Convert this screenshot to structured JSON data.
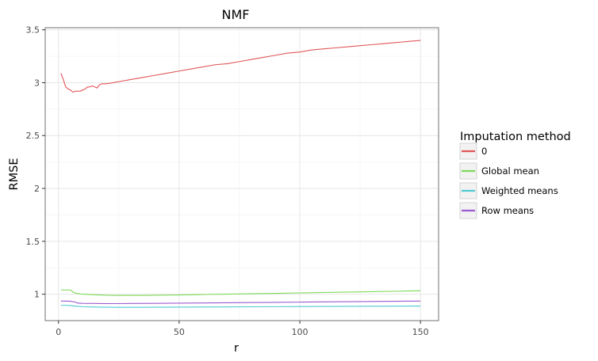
{
  "chart_data": {
    "type": "line",
    "title": "NMF",
    "xlabel": "r",
    "ylabel": "RMSE",
    "xlim": [
      -5.5,
      157.5
    ],
    "ylim": [
      0.75,
      3.52
    ],
    "xticks": [
      0,
      50,
      100,
      150
    ],
    "xtick_labels": [
      "0",
      "50",
      "100",
      "150"
    ],
    "yticks": [
      1,
      1.5,
      2,
      2.5,
      3,
      3.5
    ],
    "ytick_labels": [
      "1",
      "1.5",
      "2",
      "2.5",
      "3",
      "3.5"
    ],
    "grid": true,
    "legend": {
      "title": "Imputation method",
      "position": "right"
    },
    "series": [
      {
        "name": "0",
        "color": "#e15759",
        "x": [
          1,
          2,
          3,
          4,
          5,
          6,
          7,
          8,
          9,
          10,
          11,
          12,
          13,
          14,
          15,
          16,
          17,
          18,
          19,
          20,
          25,
          30,
          35,
          40,
          45,
          50,
          55,
          60,
          65,
          70,
          75,
          80,
          85,
          90,
          95,
          100,
          105,
          110,
          115,
          120,
          125,
          130,
          135,
          140,
          145,
          150
        ],
        "y": [
          3.09,
          3.03,
          2.96,
          2.94,
          2.93,
          2.91,
          2.92,
          2.92,
          2.92,
          2.93,
          2.94,
          2.96,
          2.96,
          2.97,
          2.96,
          2.95,
          2.98,
          2.99,
          2.99,
          2.99,
          3.01,
          3.03,
          3.05,
          3.07,
          3.09,
          3.11,
          3.13,
          3.15,
          3.17,
          3.18,
          3.2,
          3.22,
          3.24,
          3.26,
          3.28,
          3.29,
          3.31,
          3.32,
          3.33,
          3.34,
          3.35,
          3.36,
          3.37,
          3.38,
          3.39,
          3.4
        ]
      },
      {
        "name": "Global mean",
        "color": "#7ed957",
        "x": [
          1,
          3,
          5,
          6,
          7,
          10,
          15,
          20,
          25,
          30,
          35,
          40,
          50,
          60,
          70,
          80,
          90,
          100,
          110,
          120,
          130,
          140,
          150
        ],
        "y": [
          1.04,
          1.04,
          1.04,
          1.02,
          1.01,
          1.0,
          0.995,
          0.99,
          0.988,
          0.988,
          0.988,
          0.99,
          0.993,
          0.997,
          1.0,
          1.004,
          1.008,
          1.012,
          1.016,
          1.02,
          1.024,
          1.028,
          1.033
        ]
      },
      {
        "name": "Weighted means",
        "color": "#4fc9d3",
        "x": [
          1,
          3,
          5,
          8,
          10,
          15,
          20,
          25,
          30,
          40,
          50,
          60,
          70,
          80,
          90,
          100,
          110,
          120,
          130,
          140,
          150
        ],
        "y": [
          0.895,
          0.895,
          0.893,
          0.885,
          0.882,
          0.879,
          0.877,
          0.876,
          0.876,
          0.877,
          0.878,
          0.879,
          0.88,
          0.881,
          0.882,
          0.883,
          0.884,
          0.885,
          0.886,
          0.887,
          0.888
        ]
      },
      {
        "name": "Row means",
        "color": "#9b59d0",
        "x": [
          1,
          3,
          5,
          7,
          8,
          10,
          15,
          20,
          25,
          30,
          40,
          50,
          60,
          70,
          80,
          90,
          100,
          110,
          120,
          130,
          140,
          150
        ],
        "y": [
          0.935,
          0.935,
          0.933,
          0.925,
          0.915,
          0.913,
          0.912,
          0.911,
          0.911,
          0.912,
          0.913,
          0.915,
          0.917,
          0.919,
          0.921,
          0.923,
          0.925,
          0.927,
          0.929,
          0.931,
          0.933,
          0.935
        ]
      }
    ]
  }
}
